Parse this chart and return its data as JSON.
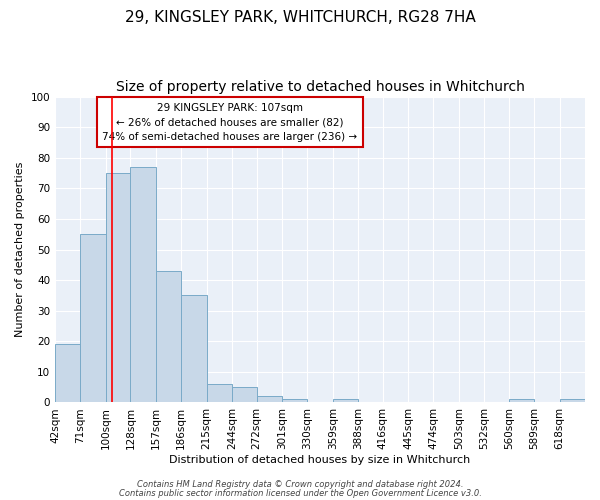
{
  "title": "29, KINGSLEY PARK, WHITCHURCH, RG28 7HA",
  "subtitle": "Size of property relative to detached houses in Whitchurch",
  "xlabel": "Distribution of detached houses by size in Whitchurch",
  "ylabel": "Number of detached properties",
  "bin_labels": [
    "42sqm",
    "71sqm",
    "100sqm",
    "128sqm",
    "157sqm",
    "186sqm",
    "215sqm",
    "244sqm",
    "272sqm",
    "301sqm",
    "330sqm",
    "359sqm",
    "388sqm",
    "416sqm",
    "445sqm",
    "474sqm",
    "503sqm",
    "532sqm",
    "560sqm",
    "589sqm",
    "618sqm"
  ],
  "bar_heights": [
    19,
    55,
    75,
    77,
    43,
    35,
    6,
    5,
    2,
    1,
    0,
    1,
    0,
    0,
    0,
    0,
    0,
    0,
    1,
    0,
    1
  ],
  "bar_color": "#c8d8e8",
  "bar_edgecolor": "#7aaac8",
  "red_line_x": 107,
  "annotation_text": "29 KINGSLEY PARK: 107sqm\n← 26% of detached houses are smaller (82)\n74% of semi-detached houses are larger (236) →",
  "annotation_box_color": "#ffffff",
  "annotation_box_edgecolor": "#cc0000",
  "ylim": [
    0,
    100
  ],
  "yticks": [
    0,
    10,
    20,
    30,
    40,
    50,
    60,
    70,
    80,
    90,
    100
  ],
  "bg_color": "#eaf0f8",
  "footer1": "Contains HM Land Registry data © Crown copyright and database right 2024.",
  "footer2": "Contains public sector information licensed under the Open Government Licence v3.0.",
  "title_fontsize": 11,
  "subtitle_fontsize": 10,
  "axis_fontsize": 8,
  "tick_fontsize": 7.5,
  "annot_fontsize": 7.5,
  "footer_fontsize": 6,
  "bin_width": 29
}
